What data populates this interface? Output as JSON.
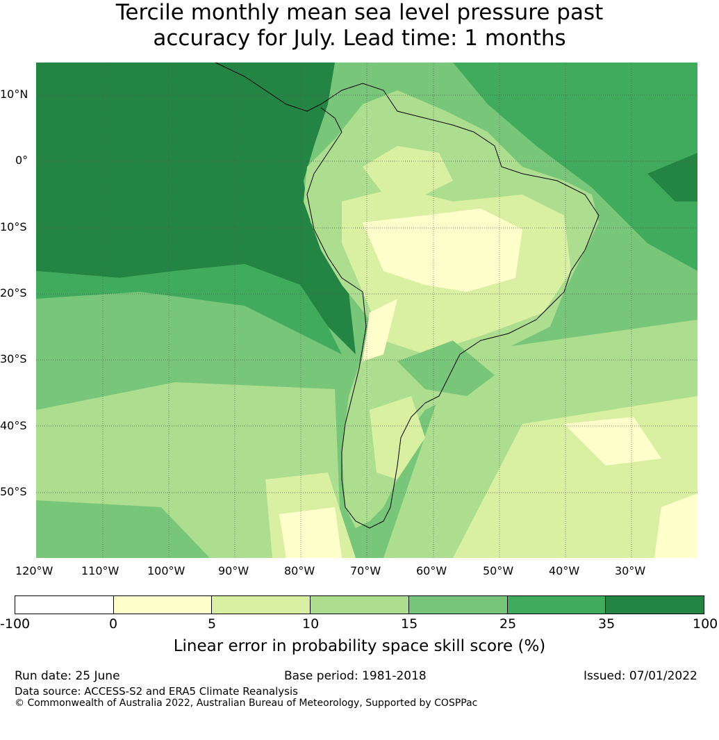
{
  "title_line1": "Tercile monthly mean sea level pressure past",
  "title_line2": "accuracy for July. Lead time: 1 months",
  "map": {
    "lat_labels": [
      "10°N",
      "0°",
      "10°S",
      "20°S",
      "30°S",
      "40°S",
      "50°S"
    ],
    "lon_labels": [
      "120°W",
      "110°W",
      "100°W",
      "90°W",
      "80°W",
      "70°W",
      "60°W",
      "50°W",
      "40°W",
      "30°W"
    ]
  },
  "colorbar": {
    "colors": [
      "#ffffff",
      "#ffffcc",
      "#d9f0a3",
      "#addd8e",
      "#78c679",
      "#41ab5d",
      "#238443"
    ],
    "ticks": [
      "-100",
      "0",
      "5",
      "10",
      "15",
      "25",
      "35",
      "100"
    ],
    "label": "Linear error in probability space skill score (%)"
  },
  "footer": {
    "run_date": "Run date: 25 June",
    "base_period": "Base period: 1981-2018",
    "issued": "Issued: 07/01/2022",
    "data_source": "Data source: ACCESS-S2 and ERA5 Climate Reanalysis",
    "copyright": "© Commonwealth of Australia 2022, Australian Bureau of Meteorology, Supported by COSPPac"
  }
}
